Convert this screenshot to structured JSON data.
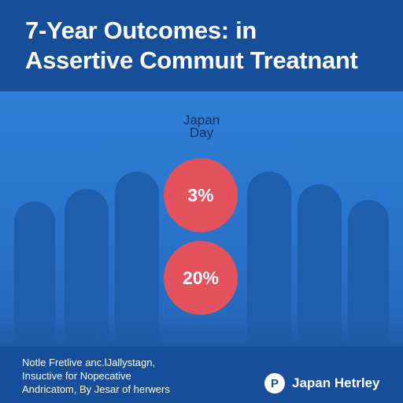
{
  "title": {
    "line1": "7-Year Outcomes: in",
    "line2": "Assertive Commuıt Treatnant"
  },
  "labels": {
    "country": "Japan",
    "period": "Day"
  },
  "stats": [
    {
      "value": "3%"
    },
    {
      "value": "20%"
    }
  ],
  "footnote": {
    "line1": "Notle Fretlive anc.lJallystagn,",
    "line2": "Insuctive for Nopecative",
    "line3": "Andricatom, By Jesar of herwers"
  },
  "brand": {
    "logo_letter": "P",
    "name": "Japan Hetrley"
  },
  "colors": {
    "background": "#1a5fb4",
    "header": "#164e9a",
    "accent_circle": "#e4525e"
  }
}
